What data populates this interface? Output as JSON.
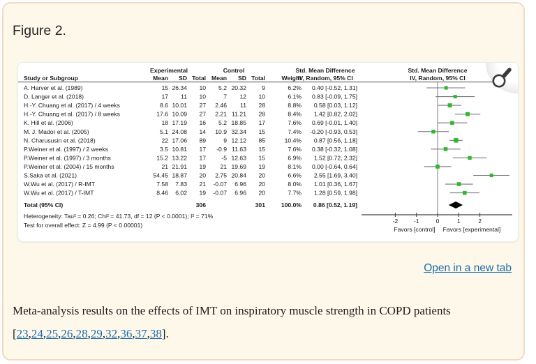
{
  "figure_label": "Figure 2.",
  "controls": {
    "open_in_new_tab": "Open in a new tab"
  },
  "caption": {
    "text": "Meta-analysis results on the effects of IMT on inspiratory muscle strength in COPD patients",
    "bracket_open": "[",
    "bracket_close": "].",
    "reference_links": [
      "23",
      "24",
      "25",
      "26",
      "28",
      "29",
      "32",
      "36",
      "37",
      "38"
    ]
  },
  "colors": {
    "link": "#1a6baa",
    "card_background": "#fdf8ea",
    "card_border": "#f6d7c3",
    "marker_green": "#2eb82e",
    "ci_line_gray": "#757575",
    "diamond_black": "#000000"
  },
  "chart_data": {
    "type": "forest",
    "header": {
      "group_experimental": "Experimental",
      "group_control": "Control",
      "smd": "Std. Mean Difference",
      "study": "Study or Subgroup",
      "mean": "Mean",
      "sd": "SD",
      "total": "Total",
      "weight": "Weight",
      "method": "IV, Random, 95% CI"
    },
    "studies": [
      {
        "name": "A. Harver et al. (1989)",
        "exp_mean": "15",
        "exp_sd": "26.34",
        "exp_total": "10",
        "ctl_mean": "5.2",
        "ctl_sd": "20.32",
        "ctl_total": "9",
        "weight": "6.2%",
        "smd": 0.4,
        "ci_low": -0.52,
        "ci_high": 1.31,
        "ci_label": "0.40 [-0.52, 1.31]"
      },
      {
        "name": "D. Langer et al. (2018)",
        "exp_mean": "17",
        "exp_sd": "11",
        "exp_total": "10",
        "ctl_mean": "7",
        "ctl_sd": "12",
        "ctl_total": "10",
        "weight": "6.1%",
        "smd": 0.83,
        "ci_low": -0.09,
        "ci_high": 1.75,
        "ci_label": "0.83 [-0.09, 1.75]"
      },
      {
        "name": "H.-Y. Chuang et al. (2017) / 4 weeks",
        "exp_mean": "8.6",
        "exp_sd": "10.01",
        "exp_total": "27",
        "ctl_mean": "2.46",
        "ctl_sd": "11",
        "ctl_total": "28",
        "weight": "8.8%",
        "smd": 0.58,
        "ci_low": 0.03,
        "ci_high": 1.12,
        "ci_label": "0.58 [0.03, 1.12]"
      },
      {
        "name": "H.-Y. Chuang et al. (2017) / 8 weeks",
        "exp_mean": "17.6",
        "exp_sd": "10.09",
        "exp_total": "27",
        "ctl_mean": "2.21",
        "ctl_sd": "11.21",
        "ctl_total": "28",
        "weight": "8.4%",
        "smd": 1.42,
        "ci_low": 0.82,
        "ci_high": 2.02,
        "ci_label": "1.42 [0.82, 2.02]"
      },
      {
        "name": "K. Hill et al. (2006)",
        "exp_mean": "18",
        "exp_sd": "17.19",
        "exp_total": "16",
        "ctl_mean": "5.2",
        "ctl_sd": "18.85",
        "ctl_total": "17",
        "weight": "7.6%",
        "smd": 0.69,
        "ci_low": -0.01,
        "ci_high": 1.4,
        "ci_label": "0.69 [-0.01, 1.40]"
      },
      {
        "name": "M. J. Mador et al. (2005)",
        "exp_mean": "5.1",
        "exp_sd": "24.08",
        "exp_total": "14",
        "ctl_mean": "10.9",
        "ctl_sd": "32.34",
        "ctl_total": "15",
        "weight": "7.4%",
        "smd": -0.2,
        "ci_low": -0.93,
        "ci_high": 0.53,
        "ci_label": "-0.20 [-0.93, 0.53]"
      },
      {
        "name": "N. Charususin et al. (2018)",
        "exp_mean": "22",
        "exp_sd": "17.06",
        "exp_total": "89",
        "ctl_mean": "9",
        "ctl_sd": "12.12",
        "ctl_total": "85",
        "weight": "10.4%",
        "smd": 0.87,
        "ci_low": 0.56,
        "ci_high": 1.18,
        "ci_label": "0.87 [0.56, 1.18]"
      },
      {
        "name": "P.Weiner et al. (1997) / 2 weeks",
        "exp_mean": "3.5",
        "exp_sd": "10.81",
        "exp_total": "17",
        "ctl_mean": "-0.9",
        "ctl_sd": "11.63",
        "ctl_total": "15",
        "weight": "7.6%",
        "smd": 0.38,
        "ci_low": -0.32,
        "ci_high": 1.08,
        "ci_label": "0.38 [-0.32, 1.08]"
      },
      {
        "name": "P.Weiner et al. (1997) / 3 months",
        "exp_mean": "15.2",
        "exp_sd": "13.22",
        "exp_total": "17",
        "ctl_mean": "-5",
        "ctl_sd": "12.63",
        "ctl_total": "15",
        "weight": "6.9%",
        "smd": 1.52,
        "ci_low": 0.72,
        "ci_high": 2.32,
        "ci_label": "1.52 [0.72, 2.32]"
      },
      {
        "name": "P.Weiner et al. (2004) / 15 months",
        "exp_mean": "21",
        "exp_sd": "21.91",
        "exp_total": "19",
        "ctl_mean": "21",
        "ctl_sd": "19.69",
        "ctl_total": "19",
        "weight": "8.1%",
        "smd": 0.0,
        "ci_low": -0.64,
        "ci_high": 0.64,
        "ci_label": "0.00 [-0.64, 0.64]"
      },
      {
        "name": "S.Saka et al. (2021)",
        "exp_mean": "54.45",
        "exp_sd": "18.87",
        "exp_total": "20",
        "ctl_mean": "2.75",
        "ctl_sd": "20.84",
        "ctl_total": "20",
        "weight": "6.6%",
        "smd": 2.55,
        "ci_low": 1.69,
        "ci_high": 3.4,
        "ci_label": "2.55 [1.69, 3.40]"
      },
      {
        "name": "W.Wu et al. (2017) / R-IMT",
        "exp_mean": "7.58",
        "exp_sd": "7.83",
        "exp_total": "21",
        "ctl_mean": "-0.07",
        "ctl_sd": "6.96",
        "ctl_total": "20",
        "weight": "8.0%",
        "smd": 1.01,
        "ci_low": 0.36,
        "ci_high": 1.67,
        "ci_label": "1.01 [0.36, 1.67]"
      },
      {
        "name": "W.Wu et al. (2017) / T-IMT",
        "exp_mean": "8.46",
        "exp_sd": "6.02",
        "exp_total": "19",
        "ctl_mean": "-0.07",
        "ctl_sd": "6.96",
        "ctl_total": "20",
        "weight": "7.7%",
        "smd": 1.28,
        "ci_low": 0.59,
        "ci_high": 1.98,
        "ci_label": "1.28 [0.59, 1.98]"
      }
    ],
    "total": {
      "label": "Total (95% CI)",
      "exp_total": "306",
      "ctl_total": "301",
      "weight": "100.0%",
      "smd": 0.86,
      "ci_low": 0.52,
      "ci_high": 1.19,
      "ci_label": "0.86 [0.52, 1.19]"
    },
    "heterogeneity": "Heterogeneity: Tau² = 0.26; Chi² = 41.73, df = 12 (P < 0.0001); I² = 71%",
    "overall_effect": "Test for overall effect: Z = 4.99 (P < 0.00001)",
    "axis": {
      "ticks": [
        "-2",
        "-1",
        "0",
        "1",
        "2"
      ],
      "tick_values": [
        -2,
        -1,
        0,
        1,
        2
      ],
      "min": -3.55,
      "max": 3.5,
      "favors_left": "Favors [control]",
      "favors_right": "Favors [experimental]"
    }
  }
}
